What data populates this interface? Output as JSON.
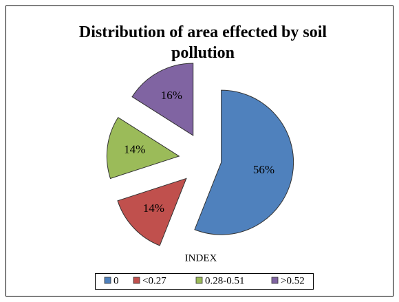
{
  "chart_data": {
    "type": "pie",
    "title": "Distribution of area effected by soil pollution",
    "categories": [
      "0",
      "<0.27",
      "0.28-0.51",
      ">0.52"
    ],
    "values": [
      56,
      14,
      14,
      16
    ],
    "value_labels": [
      "56%",
      "14%",
      "14%",
      "16%"
    ],
    "colors": [
      "#4f81bd",
      "#c0504d",
      "#9bbb59",
      "#8064a2"
    ],
    "legend_title": "INDEX",
    "legend": "bottom"
  }
}
